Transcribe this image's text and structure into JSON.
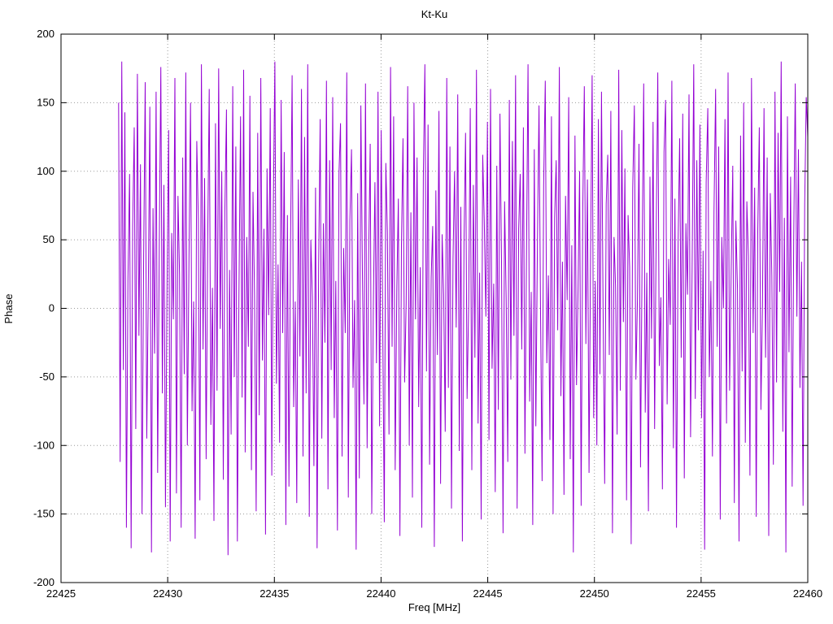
{
  "chart_data": {
    "type": "line",
    "title": "Kt-Ku",
    "xlabel": "Freq [MHz]",
    "ylabel": "Phase",
    "xlim": [
      22425,
      22460
    ],
    "ylim": [
      -200,
      200
    ],
    "xticks": [
      22425,
      22430,
      22435,
      22440,
      22445,
      22450,
      22455,
      22460
    ],
    "yticks": [
      -200,
      -150,
      -100,
      -50,
      0,
      50,
      100,
      150,
      200
    ],
    "grid": true,
    "legend": "none",
    "line_color": "#9400d3",
    "grid_color": "#9a9a9a",
    "border_color": "#000000",
    "x_start": 22427.7,
    "x_end": 22460.0,
    "values": [
      150,
      -112,
      180,
      -45,
      143,
      -160,
      22,
      98,
      -175,
      60,
      132,
      -88,
      171,
      -20,
      105,
      -150,
      38,
      165,
      -95,
      12,
      147,
      -178,
      73,
      -33,
      158,
      -120,
      45,
      176,
      -62,
      90,
      -145,
      18,
      130,
      -170,
      55,
      -8,
      168,
      -135,
      82,
      25,
      -160,
      110,
      -48,
      172,
      -100,
      35,
      150,
      -75,
      5,
      -168,
      122,
      65,
      -140,
      178,
      -30,
      95,
      -110,
      48,
      160,
      -85,
      15,
      -155,
      135,
      -60,
      175,
      -15,
      100,
      -125,
      70,
      145,
      -180,
      28,
      -92,
      162,
      -50,
      118,
      -170,
      8,
      140,
      -65,
      174,
      -105,
      52,
      -28,
      155,
      -118,
      85,
      10,
      -148,
      128,
      -78,
      168,
      -38,
      58,
      -165,
      102,
      -5,
      146,
      -122,
      75,
      180,
      -55,
      32,
      -98,
      152,
      -18,
      114,
      -158,
      68,
      -130,
      42,
      170,
      -72,
      5,
      -142,
      94,
      -35,
      160,
      -108,
      125,
      -62,
      178,
      -152,
      50,
      8,
      -115,
      88,
      -175,
      30,
      138,
      -95,
      62,
      -25,
      166,
      -132,
      108,
      -45,
      154,
      -80,
      20,
      -162,
      98,
      135,
      -108,
      44,
      -18,
      172,
      -138,
      64,
      116,
      -58,
      6,
      -176,
      84,
      -124,
      148,
      26,
      -70,
      164,
      -102,
      38,
      120,
      -150,
      0,
      92,
      -40,
      158,
      -86,
      130,
      -12,
      -156,
      106,
      56,
      -92,
      176,
      -28,
      140,
      -118,
      14,
      80,
      -166,
      46,
      124,
      -54,
      4,
      162,
      -100,
      70,
      -138,
      150,
      -8,
      110,
      -72,
      30,
      -160,
      96,
      178,
      -46,
      134,
      -114,
      22,
      60,
      -174,
      86,
      -34,
      144,
      -128,
      54,
      10,
      -90,
      168,
      -58,
      118,
      -146,
      36,
      100,
      -14,
      156,
      -104,
      74,
      -170,
      48,
      128,
      -66,
      2,
      146,
      -118,
      90,
      -36,
      174,
      -84,
      26,
      -154,
      112,
      64,
      -6,
      136,
      -96,
      160,
      -44,
      18,
      -134,
      104,
      -74,
      142,
      34,
      -164,
      78,
      8,
      -112,
      152,
      -52,
      122,
      -20,
      170,
      -146,
      58,
      98,
      -30,
      132,
      -106,
      40,
      178,
      -68,
      12,
      -158,
      116,
      -86,
      50,
      148,
      -4,
      -126,
      90,
      166,
      -40,
      24,
      -96,
      140,
      -150,
      66,
      108,
      -16,
      176,
      -64,
      34,
      -136,
      82,
      6,
      154,
      -110,
      46,
      -178,
      126,
      -56,
      14,
      100,
      -144,
      72,
      162,
      -26,
      94,
      -120,
      40,
      170,
      -80,
      20,
      -100,
      138,
      -48,
      158,
      4,
      -128,
      76,
      112,
      -34,
      144,
      -164,
      52,
      16,
      -92,
      174,
      -60,
      130,
      -10,
      102,
      -140,
      68,
      30,
      -172,
      88,
      148,
      -52,
      6,
      120,
      -116,
      44,
      164,
      -76,
      26,
      -148,
      96,
      -22,
      136,
      -88,
      58,
      172,
      -42,
      8,
      -132,
      114,
      152,
      -70,
      36,
      -12,
      166,
      -102,
      80,
      -160,
      48,
      124,
      -36,
      142,
      -124,
      62,
      10,
      156,
      -94,
      28,
      178,
      -66,
      108,
      -16,
      134,
      -80,
      42,
      -176,
      92,
      146,
      -50,
      20,
      -108,
      70,
      160,
      -28,
      118,
      -154,
      52,
      0,
      138,
      -84,
      172,
      -60,
      30,
      104,
      -142,
      64,
      14,
      -170,
      126,
      -46,
      150,
      -98,
      78,
      38,
      -122,
      168,
      -18,
      88,
      -152,
      56,
      132,
      -74,
      2,
      146,
      -36,
      110,
      -166,
      84,
      24,
      -114,
      158,
      -54,
      128,
      12,
      180,
      -90,
      66,
      -178,
      140,
      -32,
      96,
      -130,
      50,
      164,
      -6,
      116,
      -58,
      34,
      -144,
      76,
      154,
      125
    ]
  }
}
